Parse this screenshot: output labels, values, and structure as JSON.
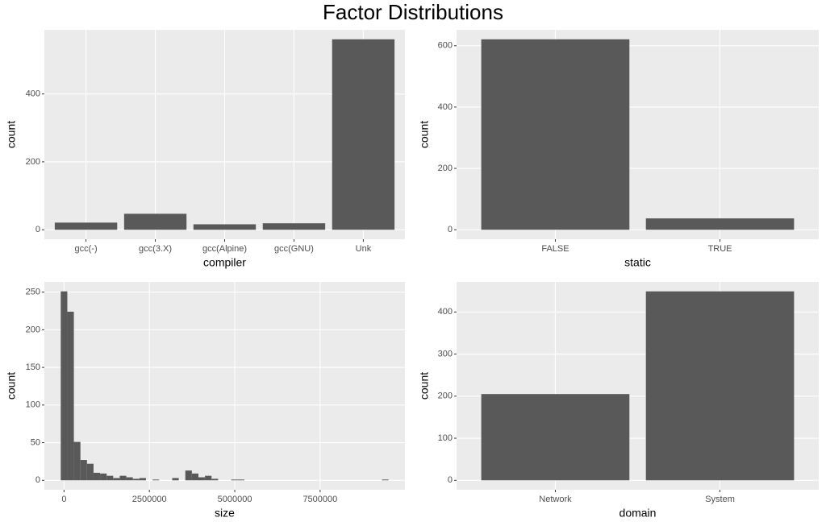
{
  "title": "Factor Distributions",
  "chart_data": [
    {
      "type": "bar",
      "x_label": "compiler",
      "y_label": "count",
      "categories": [
        "gcc(-)",
        "gcc(3.X)",
        "gcc(Alpine)",
        "gcc(GNU)",
        "Unk"
      ],
      "values": [
        21,
        47,
        16,
        19,
        561
      ],
      "color": "#595959",
      "ylim": [
        -28,
        589
      ],
      "yticks": [
        0,
        200,
        400
      ],
      "grid": true
    },
    {
      "type": "bar",
      "x_label": "static",
      "y_label": "count",
      "categories": [
        "FALSE",
        "TRUE"
      ],
      "values": [
        621,
        37
      ],
      "color": "#595959",
      "ylim": [
        -31,
        652
      ],
      "yticks": [
        0,
        200,
        400,
        600
      ],
      "grid": true
    },
    {
      "type": "histogram",
      "x_label": "size",
      "y_label": "count",
      "bins": [
        -96000,
        96000,
        288000,
        480000,
        672000,
        864000,
        1056000,
        1248000,
        1440000,
        1632000,
        1824000,
        2016000,
        2208000,
        2400000,
        2592000,
        2784000,
        2976000,
        3168000,
        3360000,
        3552000,
        3744000,
        3936000,
        4128000,
        4320000,
        4512000,
        4704000,
        4896000,
        5088000,
        5280000,
        5472000,
        5664000,
        5856000,
        6048000,
        6240000,
        6432000,
        6624000,
        6816000,
        7008000,
        7200000,
        7392000,
        7584000,
        7776000,
        7968000,
        8160000,
        8352000,
        8544000,
        8736000,
        8928000,
        9120000,
        9312000,
        9504000
      ],
      "values": [
        251,
        224,
        51,
        27,
        22,
        10,
        9,
        6,
        3,
        6,
        4,
        2,
        3,
        0,
        1,
        0,
        0,
        3,
        0,
        13,
        9,
        4,
        6,
        2,
        0,
        0,
        1,
        1,
        0,
        0,
        0,
        0,
        0,
        0,
        0,
        0,
        0,
        0,
        0,
        0,
        0,
        0,
        0,
        0,
        0,
        0,
        0,
        0,
        0,
        1
      ],
      "color": "#595959",
      "xlim": [
        -576000,
        9984000
      ],
      "xticks": [
        0,
        2500000,
        5000000,
        7500000
      ],
      "ylim": [
        -12.55,
        263.55
      ],
      "yticks": [
        0,
        50,
        100,
        150,
        200,
        250
      ],
      "grid": true
    },
    {
      "type": "bar",
      "x_label": "domain",
      "y_label": "count",
      "categories": [
        "Network",
        "System"
      ],
      "values": [
        205,
        449
      ],
      "color": "#595959",
      "ylim": [
        -22.45,
        471.45
      ],
      "yticks": [
        0,
        100,
        200,
        300,
        400
      ],
      "grid": true
    }
  ]
}
